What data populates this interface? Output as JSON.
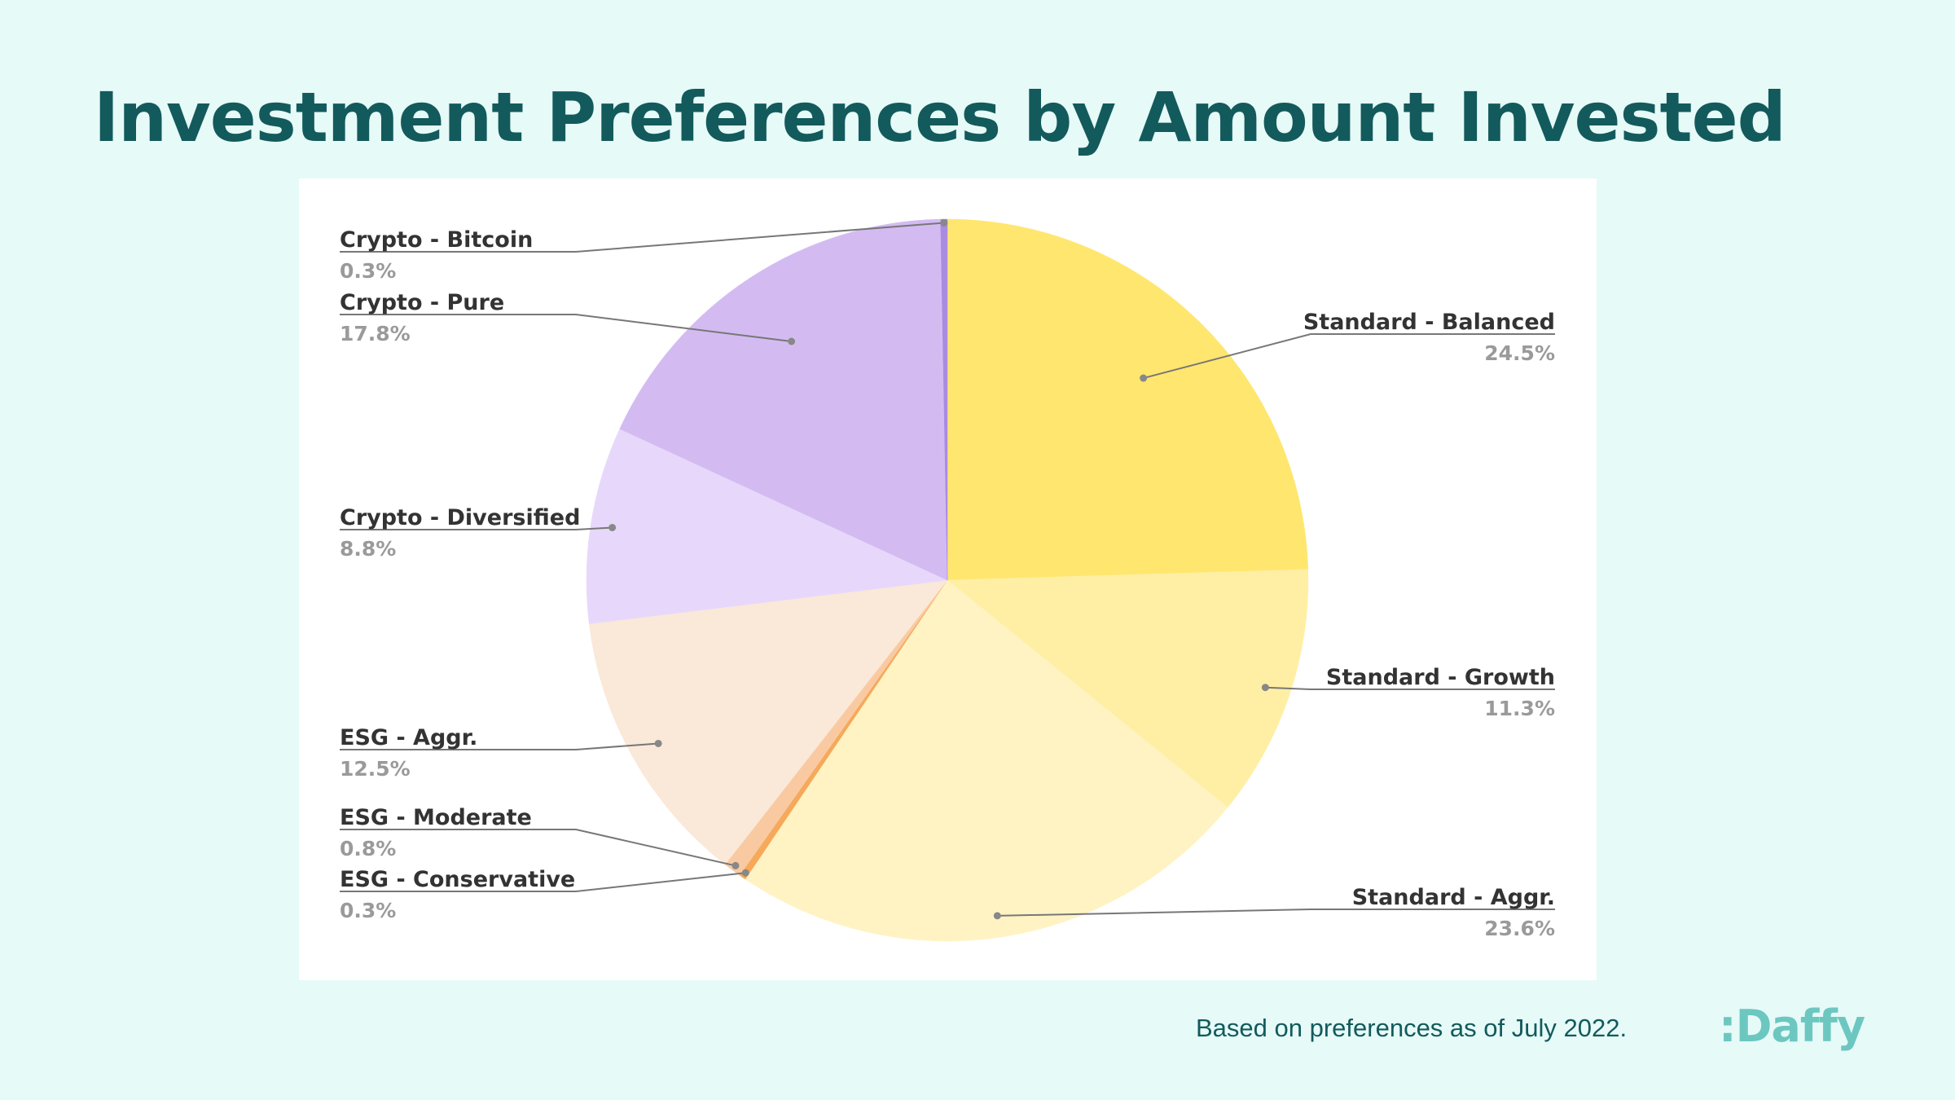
{
  "page": {
    "title": "Investment Preferences by Amount Invested",
    "footnote": "Based on preferences as of July 2022.",
    "logo_text": ":Daffy"
  },
  "colors": {
    "background": "#e6faf8",
    "title": "#135a5c",
    "logo": "#6cc7c0",
    "label_name": "#333333",
    "label_value": "#9a9a9a",
    "leader_line": "#777777"
  },
  "chart_data": {
    "type": "pie",
    "title": "",
    "start": "12 o'clock, clockwise",
    "slices": [
      {
        "name": "Standard - Balanced",
        "value": 24.5,
        "label": "24.5%",
        "color": "#ffe66f",
        "label_side": "right"
      },
      {
        "name": "Standard - Growth",
        "value": 11.3,
        "label": "11.3%",
        "color": "#ffefa4",
        "label_side": "right"
      },
      {
        "name": "Standard - Aggr.",
        "value": 23.6,
        "label": "23.6%",
        "color": "#fff3c4",
        "label_side": "right"
      },
      {
        "name": "ESG - Conservative",
        "value": 0.3,
        "label": "0.3%",
        "color": "#f6a95a",
        "label_side": "left"
      },
      {
        "name": "ESG - Moderate",
        "value": 0.8,
        "label": "0.8%",
        "color": "#f9caa2",
        "label_side": "left"
      },
      {
        "name": "ESG - Aggr.",
        "value": 12.5,
        "label": "12.5%",
        "color": "#fae8d8",
        "label_side": "left"
      },
      {
        "name": "Crypto - Diversified",
        "value": 8.8,
        "label": "8.8%",
        "color": "#e7d8fb",
        "label_side": "left"
      },
      {
        "name": "Crypto - Pure",
        "value": 17.8,
        "label": "17.8%",
        "color": "#d3bbf2",
        "label_side": "left"
      },
      {
        "name": "Crypto - Bitcoin",
        "value": 0.3,
        "label": "0.3%",
        "color": "#a98be0",
        "label_side": "left"
      }
    ]
  }
}
